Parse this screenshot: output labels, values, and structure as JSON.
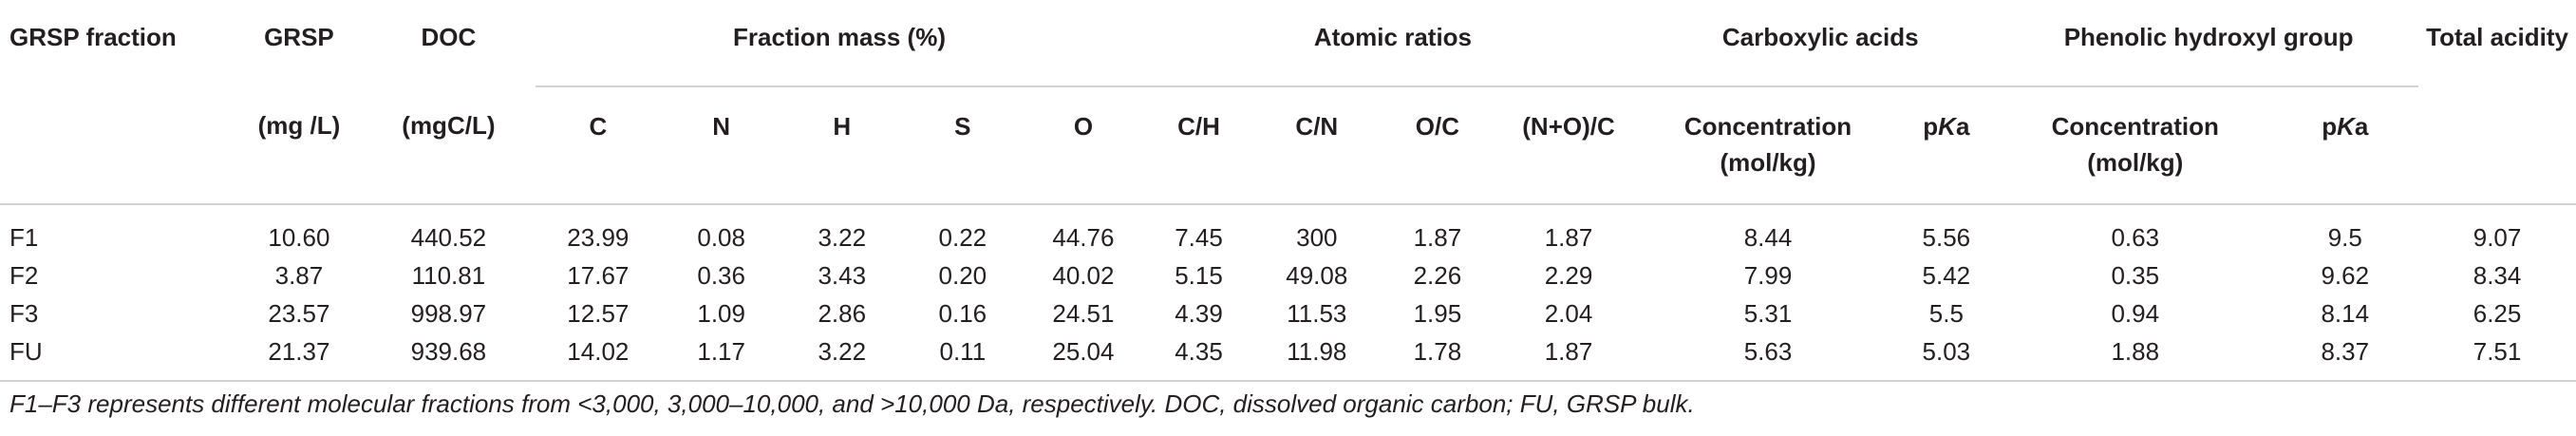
{
  "header": {
    "grsp_fraction": "GRSP fraction",
    "grsp": "GRSP",
    "grsp_unit": "(mg /L)",
    "doc": "DOC",
    "doc_unit": "(mgC/L)",
    "fraction_mass": "Fraction mass (%)",
    "fraction_mass_cols": [
      "C",
      "N",
      "H",
      "S",
      "O"
    ],
    "atomic_ratios": "Atomic ratios",
    "atomic_ratio_cols": [
      "C/H",
      "C/N",
      "O/C",
      "(N+O)/C"
    ],
    "carboxylic_acids": "Carboxylic acids",
    "phenolic_hydroxyl": "Phenolic hydroxyl group",
    "concentration_line1": "Concentration",
    "concentration_line2": "(mol/kg)",
    "pka_p": "p",
    "pka_k": "K",
    "pka_a": "a",
    "total_acidity": "Total acidity"
  },
  "rows": [
    {
      "name": "F1",
      "grsp": "10.60",
      "doc": "440.52",
      "c": "23.99",
      "n": "0.08",
      "h": "3.22",
      "s": "0.22",
      "o": "44.76",
      "ch": "7.45",
      "cn": "300",
      "oc": "1.87",
      "noc": "1.87",
      "carb_conc": "8.44",
      "carb_pka": "5.56",
      "phen_conc": "0.63",
      "phen_pka": "9.5",
      "total": "9.07"
    },
    {
      "name": "F2",
      "grsp": "3.87",
      "doc": "110.81",
      "c": "17.67",
      "n": "0.36",
      "h": "3.43",
      "s": "0.20",
      "o": "40.02",
      "ch": "5.15",
      "cn": "49.08",
      "oc": "2.26",
      "noc": "2.29",
      "carb_conc": "7.99",
      "carb_pka": "5.42",
      "phen_conc": "0.35",
      "phen_pka": "9.62",
      "total": "8.34"
    },
    {
      "name": "F3",
      "grsp": "23.57",
      "doc": "998.97",
      "c": "12.57",
      "n": "1.09",
      "h": "2.86",
      "s": "0.16",
      "o": "24.51",
      "ch": "4.39",
      "cn": "11.53",
      "oc": "1.95",
      "noc": "2.04",
      "carb_conc": "5.31",
      "carb_pka": "5.5",
      "phen_conc": "0.94",
      "phen_pka": "8.14",
      "total": "6.25"
    },
    {
      "name": "FU",
      "grsp": "21.37",
      "doc": "939.68",
      "c": "14.02",
      "n": "1.17",
      "h": "3.22",
      "s": "0.11",
      "o": "25.04",
      "ch": "4.35",
      "cn": "11.98",
      "oc": "1.78",
      "noc": "1.87",
      "carb_conc": "5.63",
      "carb_pka": "5.03",
      "phen_conc": "1.88",
      "phen_pka": "8.37",
      "total": "7.51"
    }
  ],
  "footnote": "F1–F3 represents different molecular fractions from <3,000, 3,000–10,000, and >10,000 Da, respectively. DOC, dissolved organic carbon; FU, GRSP bulk."
}
